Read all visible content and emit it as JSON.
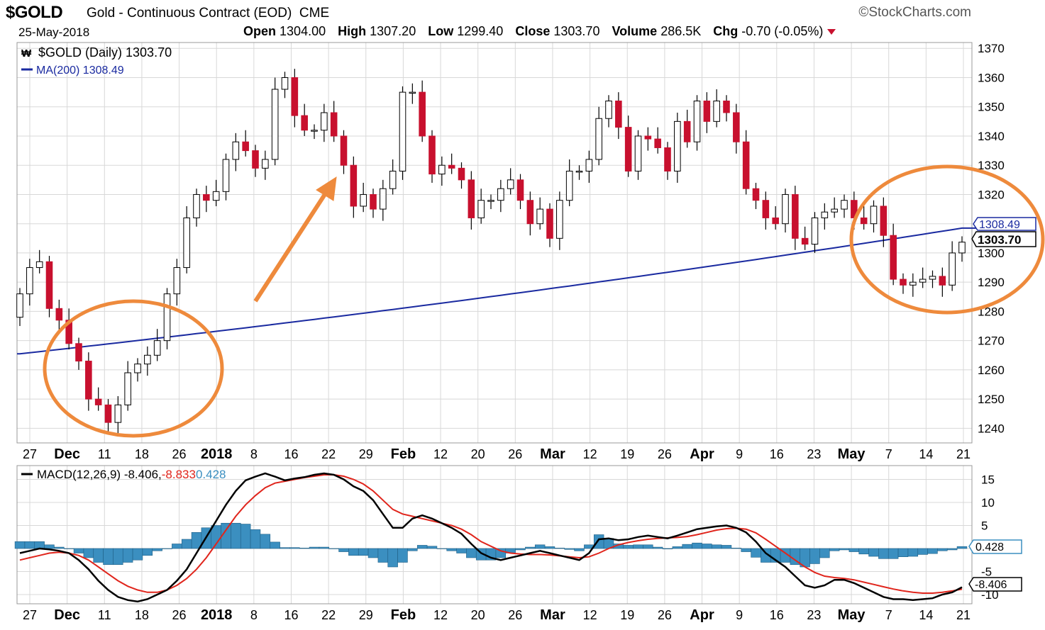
{
  "header": {
    "symbol": "$GOLD",
    "description": "Gold - Continuous Contract (EOD)",
    "exchange": "CME",
    "brand": "©StockCharts.com",
    "date": "25-May-2018",
    "open_label": "Open",
    "open_value": "1304.00",
    "high_label": "High",
    "high_value": "1307.20",
    "low_label": "Low",
    "low_value": "1299.40",
    "close_label": "Close",
    "close_value": "1303.70",
    "volume_label": "Volume",
    "volume_value": "286.5K",
    "chg_label": "Chg",
    "chg_value": "-0.70 (-0.05%)"
  },
  "legend": {
    "price": "$GOLD (Daily) 1303.70",
    "ma": "MA(200) 1308.49",
    "macd_prefix": "MACD(12,26,9) -8.406,",
    "macd_signal": "-8.833",
    "macd_hist": "0.428"
  },
  "badges": {
    "ma": "1308.49",
    "close": "1303.70",
    "macd_hist": "0.428",
    "macd": "-8.406"
  },
  "colors": {
    "up": "#ffffff",
    "down": "#c8102e",
    "ma": "#1a2aa0",
    "annotation": "#ee8a3c",
    "macd_line": "#000000",
    "signal_line": "#e0251c",
    "histogram": "#3b8fc0",
    "grid": "#d8d8d8"
  },
  "chart_data": [
    {
      "type": "candlestick",
      "title": "$GOLD (Daily) 1303.70",
      "ylim": [
        1235,
        1372
      ],
      "yticks": [
        1240,
        1250,
        1260,
        1270,
        1280,
        1290,
        1300,
        1310,
        1320,
        1330,
        1340,
        1350,
        1360,
        1370
      ],
      "xtick_labels": [
        "27",
        "Dec",
        "11",
        "18",
        "26",
        "2018",
        "8",
        "16",
        "22",
        "29",
        "Feb",
        "12",
        "20",
        "26",
        "Mar",
        "12",
        "19",
        "26",
        "Apr",
        "9",
        "16",
        "23",
        "May",
        "7",
        "14",
        "21"
      ],
      "close": [
        1286,
        1295,
        1297,
        1281,
        1277,
        1269,
        1263,
        1250,
        1248,
        1242,
        1248,
        1259,
        1262,
        1265,
        1270,
        1286,
        1295,
        1312,
        1320,
        1318,
        1321,
        1332,
        1338,
        1335,
        1329,
        1332,
        1356,
        1360,
        1347,
        1342,
        1342,
        1348,
        1340,
        1330,
        1316,
        1320,
        1315,
        1322,
        1328,
        1355,
        1355,
        1340,
        1327,
        1330,
        1329,
        1325,
        1312,
        1318,
        1318,
        1322,
        1325,
        1318,
        1310,
        1315,
        1305,
        1318,
        1328,
        1328,
        1332,
        1346,
        1352,
        1343,
        1328,
        1340,
        1339,
        1336,
        1328,
        1345,
        1338,
        1352,
        1345,
        1352,
        1348,
        1338,
        1322,
        1318,
        1312,
        1310,
        1320,
        1305,
        1303,
        1312,
        1314,
        1315,
        1318,
        1312,
        1310,
        1316,
        1306,
        1291,
        1289,
        1290,
        1291,
        1292,
        1289,
        1300,
        1303.7
      ],
      "ma200": {
        "name": "MA(200)",
        "start": 1265.5,
        "end": 1308.49
      }
    },
    {
      "type": "line",
      "title": "MACD(12,26,9) -8.406, -8.833, 0.428",
      "ylim": [
        -12,
        18
      ],
      "yticks": [
        15,
        10,
        5,
        0,
        -5,
        -10
      ],
      "series": [
        {
          "name": "MACD",
          "values": [
            -1,
            -0.5,
            0,
            -0.2,
            -0.5,
            -1,
            -2.5,
            -4.5,
            -7,
            -9,
            -10.5,
            -11.2,
            -11.5,
            -11,
            -10,
            -9,
            -7,
            -4.5,
            -1,
            2.5,
            6,
            9.5,
            12.5,
            14.8,
            15.6,
            16.3,
            15.6,
            14.8,
            15.2,
            15.5,
            16,
            16.3,
            16,
            15,
            13.5,
            12.5,
            10.5,
            7.5,
            4.5,
            4.5,
            6.5,
            7.2,
            6.5,
            5.5,
            4.5,
            3.2,
            1,
            -1,
            -2,
            -2.5,
            -2,
            -1.5,
            -1,
            -0.5,
            -1,
            -1.5,
            -2,
            -2.5,
            -1,
            2,
            2.2,
            1.8,
            2,
            2.5,
            2.8,
            2.5,
            2.2,
            2.8,
            3.5,
            4.2,
            4.5,
            4.8,
            5,
            4.5,
            3.5,
            1.5,
            -1,
            -2.5,
            -4,
            -6,
            -8,
            -8.5,
            -8,
            -6.8,
            -6.8,
            -7.5,
            -8.5,
            -9.5,
            -10.5,
            -11,
            -11,
            -11.2,
            -11,
            -10.8,
            -10,
            -9.5,
            -8.406
          ]
        },
        {
          "name": "Signal",
          "values": [
            -2.5,
            -2,
            -1.5,
            -1,
            -0.8,
            -1,
            -1.5,
            -2.5,
            -4,
            -5.5,
            -7,
            -8.2,
            -9,
            -9.5,
            -9.5,
            -9,
            -8,
            -6.5,
            -4.5,
            -2,
            1,
            4,
            7,
            9.5,
            11.5,
            13.2,
            14.2,
            14.6,
            15,
            15.4,
            15.7,
            16,
            16,
            15.7,
            15,
            14,
            12.5,
            10.5,
            8.5,
            7.5,
            7,
            6.5,
            6,
            5.5,
            5,
            4.2,
            3,
            1.5,
            0.5,
            -0.5,
            -1,
            -1.2,
            -1.3,
            -1.3,
            -1.4,
            -1.6,
            -1.8,
            -2,
            -1.8,
            -1,
            0,
            0.8,
            1.3,
            1.7,
            2,
            2.2,
            2.3,
            2.4,
            2.6,
            3,
            3.5,
            4,
            4.3,
            4.4,
            4.2,
            3.4,
            2,
            0.5,
            -1,
            -2.5,
            -4,
            -5.2,
            -6,
            -6.3,
            -6.5,
            -6.8,
            -7.3,
            -7.8,
            -8.3,
            -8.8,
            -9.2,
            -9.5,
            -9.7,
            -9.7,
            -9.5,
            -9.2,
            -8.833
          ]
        }
      ],
      "histogram": {
        "name": "Histogram",
        "last": 0.428
      }
    }
  ]
}
